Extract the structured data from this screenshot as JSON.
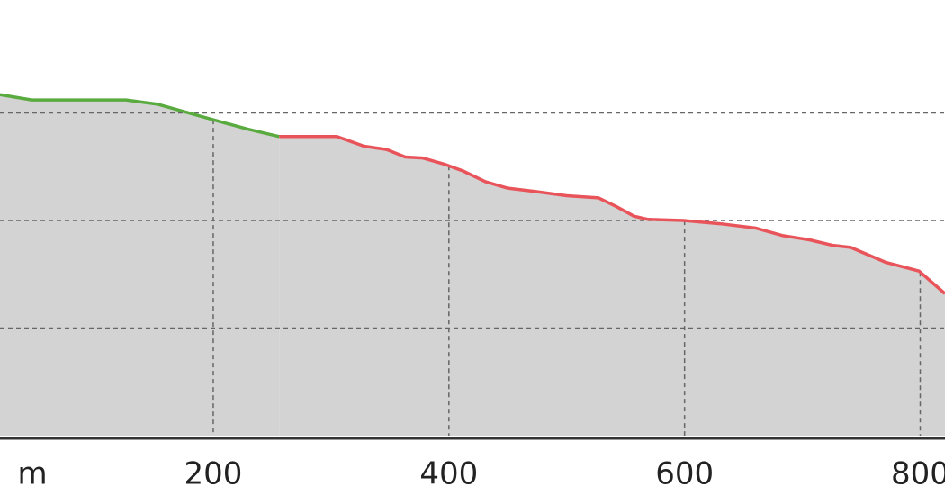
{
  "chart_data": {
    "type": "area-line",
    "x_unit": "m",
    "xlim": [
      19,
      821
    ],
    "xticks": [
      200,
      400,
      600,
      800
    ],
    "ylim": [
      0,
      4.05
    ],
    "ygrid": [
      1,
      2,
      3
    ],
    "grid": true,
    "area_color": "#d3d3d3",
    "series": [
      {
        "color": "#5aab3f",
        "x": [
          19,
          46,
          126,
          153,
          179,
          202,
          229,
          256
        ],
        "values": [
          3.17,
          3.12,
          3.12,
          3.08,
          3.0,
          2.93,
          2.85,
          2.78
        ]
      },
      {
        "color": "#e8545a",
        "x": [
          256,
          305,
          328,
          347,
          363,
          378,
          397,
          412,
          431,
          450,
          473,
          500,
          527,
          542,
          557,
          569,
          599,
          630,
          660,
          683,
          706,
          725,
          741,
          756,
          771,
          799,
          821
        ],
        "values": [
          2.78,
          2.78,
          2.69,
          2.66,
          2.59,
          2.58,
          2.52,
          2.46,
          2.36,
          2.3,
          2.27,
          2.23,
          2.21,
          2.13,
          2.04,
          2.01,
          2.0,
          1.97,
          1.93,
          1.86,
          1.82,
          1.77,
          1.75,
          1.68,
          1.61,
          1.53,
          1.32
        ]
      }
    ]
  }
}
